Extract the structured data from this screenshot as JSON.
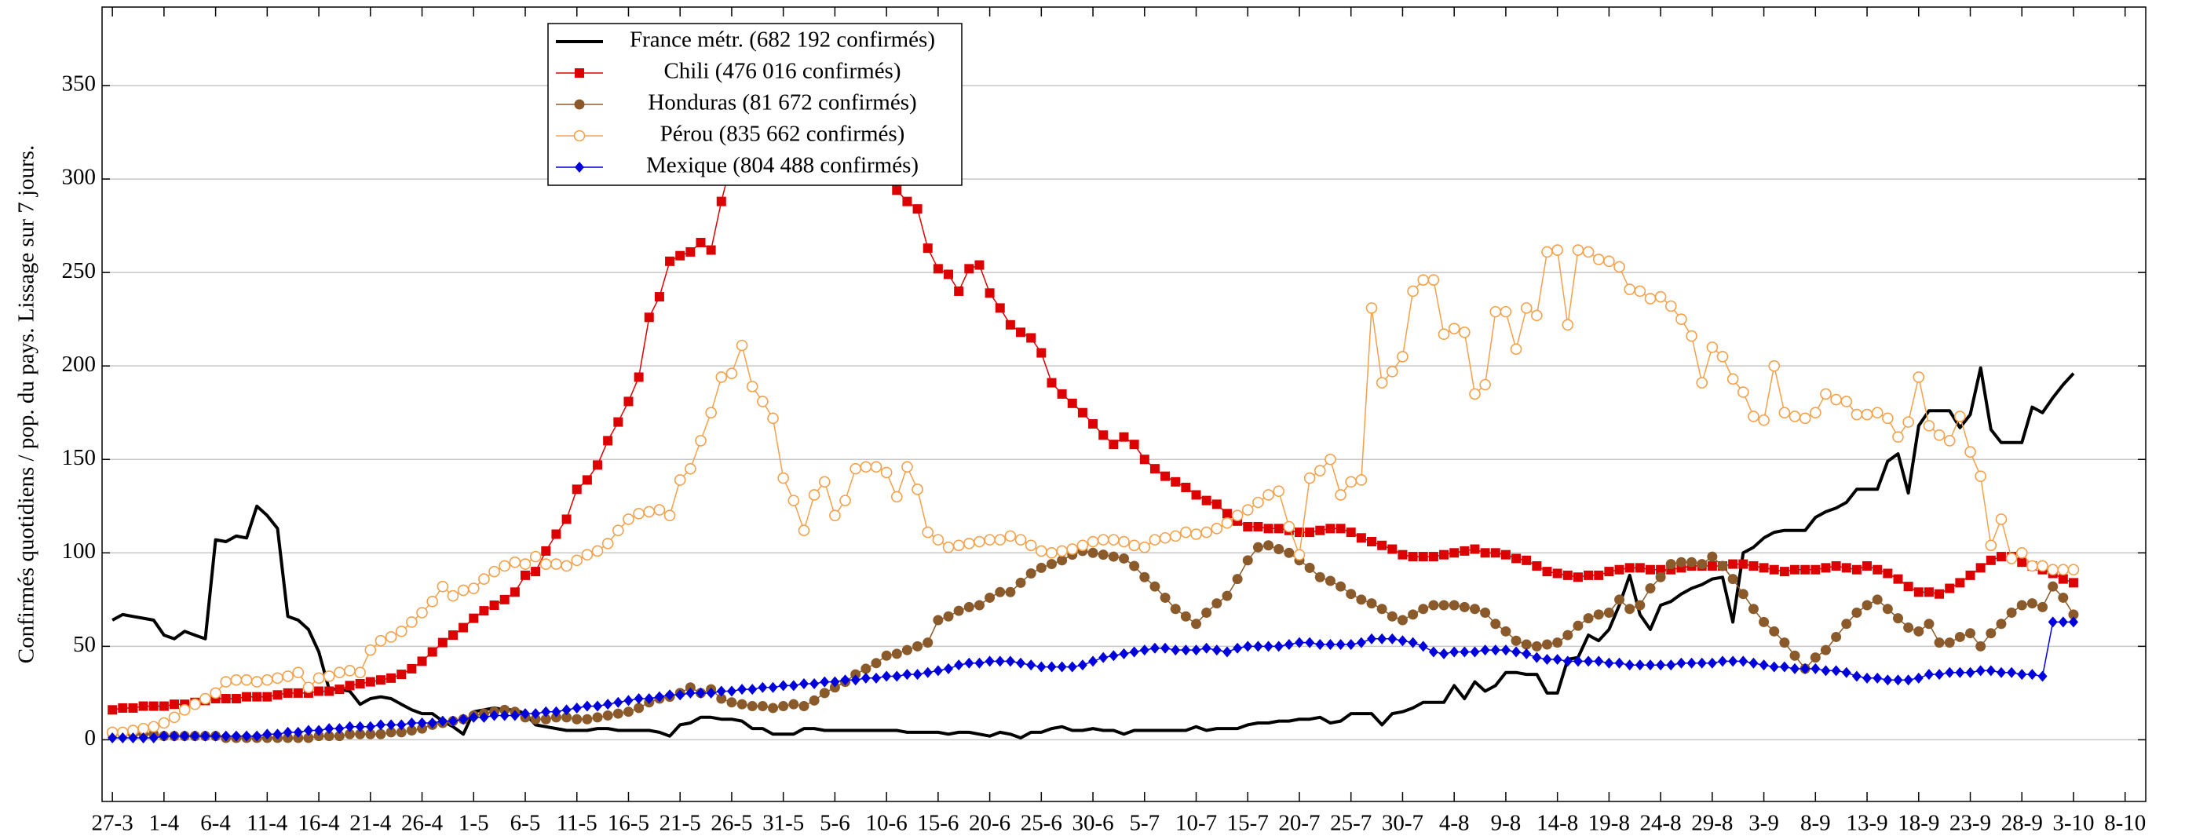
{
  "chart_data": {
    "type": "line",
    "y_label": "Confirmés quotidiens / pop. du pays. Lissage sur 7 jours.",
    "x": [
      0,
      1,
      2,
      3,
      4,
      5,
      6,
      7,
      8,
      9,
      10,
      11,
      12,
      13,
      14,
      15,
      16,
      17,
      18,
      19,
      20,
      21,
      22,
      23,
      24,
      25,
      26,
      27,
      28,
      29,
      30,
      31,
      32,
      33,
      34,
      35,
      36,
      37,
      38,
      39,
      40,
      41,
      42,
      43,
      44,
      45,
      46,
      47,
      48,
      49,
      50,
      51,
      52,
      53,
      54,
      55,
      56,
      57,
      58,
      59,
      60,
      61,
      62,
      63,
      64,
      65,
      66,
      67,
      68,
      69,
      70,
      71,
      72,
      73,
      74,
      75,
      76,
      77,
      78,
      79,
      80,
      81,
      82,
      83,
      84,
      85,
      86,
      87,
      88,
      89,
      90,
      91,
      92,
      93,
      94,
      95,
      96,
      97,
      98,
      99,
      100,
      101,
      102,
      103,
      104,
      105,
      106,
      107,
      108,
      109,
      110,
      111,
      112,
      113,
      114,
      115,
      116,
      117,
      118,
      119,
      120,
      121,
      122,
      123,
      124,
      125,
      126,
      127,
      128,
      129,
      130,
      131,
      132,
      133,
      134,
      135,
      136,
      137,
      138,
      139,
      140,
      141,
      142,
      143,
      144,
      145,
      146,
      147,
      148,
      149,
      150,
      151,
      152,
      153,
      154,
      155,
      156,
      157,
      158,
      159,
      160,
      161,
      162,
      163,
      164,
      165,
      166,
      167,
      168,
      169,
      170,
      171,
      172,
      173,
      174,
      175,
      176,
      177,
      178,
      179,
      180,
      181,
      182,
      183,
      184,
      185,
      186,
      187,
      188,
      189,
      190
    ],
    "xlim": [
      -1,
      197
    ],
    "xticks": [
      {
        "value": 0,
        "label": "27-3"
      },
      {
        "value": 5,
        "label": "1-4"
      },
      {
        "value": 10,
        "label": "6-4"
      },
      {
        "value": 15,
        "label": "11-4"
      },
      {
        "value": 20,
        "label": "16-4"
      },
      {
        "value": 25,
        "label": "21-4"
      },
      {
        "value": 30,
        "label": "26-4"
      },
      {
        "value": 35,
        "label": "1-5"
      },
      {
        "value": 40,
        "label": "6-5"
      },
      {
        "value": 45,
        "label": "11-5"
      },
      {
        "value": 50,
        "label": "16-5"
      },
      {
        "value": 55,
        "label": "21-5"
      },
      {
        "value": 60,
        "label": "26-5"
      },
      {
        "value": 65,
        "label": "31-5"
      },
      {
        "value": 70,
        "label": "5-6"
      },
      {
        "value": 75,
        "label": "10-6"
      },
      {
        "value": 80,
        "label": "15-6"
      },
      {
        "value": 85,
        "label": "20-6"
      },
      {
        "value": 90,
        "label": "25-6"
      },
      {
        "value": 95,
        "label": "30-6"
      },
      {
        "value": 100,
        "label": "5-7"
      },
      {
        "value": 105,
        "label": "10-7"
      },
      {
        "value": 110,
        "label": "15-7"
      },
      {
        "value": 115,
        "label": "20-7"
      },
      {
        "value": 120,
        "label": "25-7"
      },
      {
        "value": 125,
        "label": "30-7"
      },
      {
        "value": 130,
        "label": "4-8"
      },
      {
        "value": 135,
        "label": "9-8"
      },
      {
        "value": 140,
        "label": "14-8"
      },
      {
        "value": 145,
        "label": "19-8"
      },
      {
        "value": 150,
        "label": "24-8"
      },
      {
        "value": 155,
        "label": "29-8"
      },
      {
        "value": 160,
        "label": "3-9"
      },
      {
        "value": 165,
        "label": "8-9"
      },
      {
        "value": 170,
        "label": "13-9"
      },
      {
        "value": 175,
        "label": "18-9"
      },
      {
        "value": 180,
        "label": "23-9"
      },
      {
        "value": 185,
        "label": "28-9"
      },
      {
        "value": 190,
        "label": "3-10"
      },
      {
        "value": 195,
        "label": "8-10"
      }
    ],
    "ylim": [
      -33,
      392
    ],
    "yticks": [
      0,
      50,
      100,
      150,
      200,
      250,
      300,
      350
    ],
    "grid": true,
    "legend": "upper center",
    "series": [
      {
        "name": "France métr. (682 192 confirmés)",
        "color": "#000000",
        "marker": "none",
        "values": [
          64,
          67,
          66,
          65,
          64,
          56,
          54,
          58,
          56,
          54,
          107,
          106,
          109,
          108,
          125,
          120,
          113,
          66,
          64,
          59,
          47,
          27,
          27,
          26,
          19,
          22,
          23,
          22,
          19,
          16,
          14,
          14,
          10,
          7,
          3,
          15,
          16,
          17,
          16,
          16,
          14,
          8,
          7,
          6,
          5,
          5,
          5,
          6,
          6,
          5,
          5,
          5,
          5,
          4,
          2,
          8,
          9,
          12,
          12,
          11,
          11,
          10,
          6,
          6,
          3,
          3,
          3,
          6,
          6,
          5,
          5,
          5,
          5,
          5,
          5,
          5,
          5,
          4,
          4,
          4,
          4,
          3,
          4,
          4,
          3,
          2,
          4,
          3,
          1,
          4,
          4,
          6,
          7,
          5,
          5,
          6,
          5,
          5,
          3,
          5,
          5,
          5,
          5,
          5,
          5,
          7,
          5,
          6,
          6,
          6,
          8,
          9,
          9,
          10,
          10,
          11,
          11,
          12,
          9,
          10,
          14,
          14,
          14,
          8,
          14,
          15,
          17,
          20,
          20,
          20,
          29,
          22,
          31,
          26,
          29,
          36,
          36,
          35,
          35,
          25,
          25,
          43,
          44,
          56,
          53,
          59,
          72,
          88,
          67,
          59,
          72,
          74,
          78,
          81,
          83,
          86,
          87,
          63,
          100,
          103,
          108,
          111,
          112,
          112,
          112,
          119,
          122,
          124,
          127,
          134,
          134,
          134,
          149,
          153,
          132,
          168,
          176,
          176,
          176,
          167,
          174,
          199,
          166,
          159,
          159,
          159,
          178,
          175,
          183,
          190,
          196
        ]
      },
      {
        "name": "Chili (476 016 confirmés)",
        "color": "#dd0000",
        "marker": "square",
        "values": [
          16,
          17,
          17,
          18,
          18,
          18,
          19,
          19,
          20,
          21,
          22,
          22,
          22,
          23,
          23,
          23,
          24,
          25,
          25,
          25,
          26,
          26,
          27,
          29,
          30,
          31,
          32,
          33,
          35,
          38,
          42,
          47,
          52,
          56,
          60,
          65,
          69,
          72,
          75,
          79,
          88,
          90,
          101,
          110,
          118,
          134,
          139,
          147,
          160,
          170,
          181,
          194,
          226,
          237,
          256,
          259,
          261,
          266,
          262,
          288,
          310,
          325,
          335,
          345,
          350,
          352,
          350,
          348,
          345,
          340,
          335,
          330,
          325,
          315,
          305,
          300,
          294,
          288,
          284,
          263,
          252,
          249,
          240,
          252,
          254,
          239,
          231,
          222,
          218,
          215,
          207,
          191,
          185,
          180,
          175,
          169,
          163,
          158,
          162,
          158,
          150,
          145,
          141,
          138,
          135,
          131,
          128,
          126,
          121,
          117,
          114,
          114,
          113,
          113,
          112,
          111,
          111,
          112,
          113,
          113,
          111,
          108,
          106,
          104,
          102,
          99,
          98,
          98,
          98,
          99,
          100,
          101,
          102,
          100,
          100,
          99,
          97,
          96,
          93,
          90,
          89,
          88,
          87,
          88,
          88,
          90,
          91,
          92,
          92,
          91,
          91,
          91,
          92,
          93,
          93,
          93,
          93,
          94,
          94,
          93,
          92,
          91,
          90,
          91,
          91,
          91,
          92,
          93,
          92,
          91,
          93,
          91,
          89,
          86,
          82,
          79,
          79,
          78,
          81,
          84,
          88,
          92,
          96,
          98,
          98,
          95,
          93,
          91,
          89,
          86,
          84
        ]
      },
      {
        "name": "Honduras (81 672 confirmés)",
        "color": "#8b5a2b",
        "marker": "circle",
        "values": [
          3,
          3,
          3,
          3,
          3,
          2,
          2,
          2,
          2,
          2,
          2,
          1,
          1,
          1,
          1,
          1,
          1,
          1,
          1,
          1,
          2,
          2,
          2,
          3,
          3,
          3,
          3,
          4,
          4,
          5,
          6,
          8,
          9,
          10,
          11,
          13,
          14,
          15,
          16,
          15,
          12,
          11,
          11,
          12,
          12,
          11,
          11,
          12,
          13,
          14,
          15,
          17,
          20,
          22,
          23,
          25,
          28,
          25,
          27,
          22,
          20,
          19,
          18,
          18,
          17,
          18,
          19,
          18,
          21,
          25,
          28,
          31,
          35,
          38,
          41,
          45,
          46,
          48,
          50,
          52,
          64,
          66,
          69,
          71,
          72,
          76,
          79,
          79,
          84,
          89,
          92,
          94,
          96,
          99,
          101,
          100,
          99,
          98,
          97,
          93,
          87,
          82,
          76,
          70,
          66,
          62,
          68,
          73,
          77,
          86,
          96,
          103,
          104,
          102,
          100,
          96,
          92,
          87,
          85,
          82,
          78,
          75,
          73,
          70,
          66,
          64,
          67,
          70,
          72,
          72,
          72,
          71,
          70,
          68,
          62,
          58,
          53,
          51,
          50,
          51,
          52,
          56,
          61,
          65,
          67,
          68,
          75,
          70,
          72,
          81,
          87,
          94,
          95,
          95,
          94,
          98,
          93,
          86,
          78,
          70,
          63,
          58,
          52,
          45,
          38,
          44,
          48,
          55,
          62,
          68,
          72,
          75,
          70,
          65,
          60,
          58,
          62,
          52,
          52,
          55,
          57,
          50,
          57,
          62,
          68,
          72,
          73,
          71,
          82,
          76,
          67
        ]
      },
      {
        "name": "Pérou (835 662 confirmés)",
        "color": "#f5a04a",
        "marker": "circle-open",
        "values": [
          4,
          4,
          5,
          6,
          7,
          9,
          12,
          16,
          19,
          22,
          25,
          31,
          32,
          32,
          31,
          32,
          33,
          34,
          36,
          28,
          33,
          34,
          36,
          37,
          36,
          48,
          53,
          55,
          58,
          63,
          68,
          74,
          82,
          77,
          80,
          81,
          86,
          90,
          93,
          95,
          94,
          98,
          94,
          94,
          93,
          96,
          99,
          101,
          105,
          112,
          118,
          121,
          122,
          123,
          120,
          139,
          145,
          160,
          175,
          194,
          196,
          211,
          189,
          181,
          172,
          140,
          128,
          112,
          131,
          138,
          120,
          128,
          145,
          146,
          146,
          143,
          130,
          146,
          134,
          111,
          107,
          103,
          104,
          105,
          106,
          107,
          107,
          109,
          107,
          104,
          101,
          100,
          101,
          102,
          104,
          106,
          107,
          107,
          106,
          104,
          103,
          107,
          108,
          109,
          111,
          110,
          111,
          113,
          116,
          120,
          123,
          127,
          131,
          133,
          114,
          99,
          140,
          144,
          150,
          131,
          138,
          139,
          231,
          191,
          197,
          205,
          240,
          246,
          246,
          217,
          220,
          218,
          185,
          190,
          229,
          229,
          209,
          231,
          227,
          261,
          262,
          222,
          262,
          261,
          257,
          256,
          253,
          241,
          240,
          236,
          237,
          232,
          225,
          216,
          191,
          210,
          205,
          193,
          186,
          173,
          171,
          200,
          175,
          173,
          172,
          175,
          185,
          182,
          181,
          174,
          174,
          175,
          172,
          162,
          170,
          194,
          168,
          163,
          160,
          173,
          154,
          141,
          104,
          118,
          97,
          100,
          93,
          93,
          91,
          91,
          91
        ]
      },
      {
        "name": "Mexique (804 488 confirmés)",
        "color": "#0000dd",
        "marker": "diamond",
        "values": [
          1,
          1,
          1,
          1,
          1,
          2,
          2,
          2,
          2,
          2,
          2,
          2,
          2,
          2,
          2,
          3,
          3,
          4,
          4,
          5,
          5,
          6,
          6,
          7,
          7,
          7,
          8,
          8,
          8,
          9,
          9,
          9,
          10,
          10,
          11,
          12,
          12,
          13,
          13,
          13,
          14,
          14,
          15,
          15,
          16,
          17,
          18,
          18,
          19,
          20,
          21,
          22,
          22,
          23,
          24,
          24,
          25,
          25,
          25,
          26,
          26,
          27,
          27,
          28,
          28,
          29,
          29,
          30,
          30,
          31,
          31,
          32,
          32,
          33,
          33,
          34,
          34,
          35,
          35,
          36,
          37,
          38,
          40,
          41,
          41,
          42,
          42,
          42,
          41,
          40,
          39,
          39,
          39,
          39,
          40,
          42,
          44,
          45,
          46,
          47,
          48,
          49,
          49,
          48,
          48,
          48,
          49,
          48,
          47,
          49,
          50,
          50,
          50,
          50,
          51,
          52,
          52,
          51,
          51,
          51,
          51,
          52,
          54,
          54,
          54,
          53,
          52,
          50,
          47,
          46,
          47,
          47,
          47,
          48,
          48,
          48,
          47,
          46,
          44,
          43,
          43,
          42,
          42,
          42,
          42,
          41,
          41,
          40,
          40,
          40,
          40,
          40,
          41,
          41,
          41,
          41,
          42,
          42,
          42,
          41,
          40,
          39,
          39,
          38,
          38,
          38,
          37,
          37,
          36,
          34,
          33,
          33,
          32,
          32,
          32,
          33,
          35,
          35,
          36,
          36,
          36,
          37,
          37,
          36,
          36,
          35,
          35,
          34,
          63,
          63,
          63
        ]
      }
    ]
  }
}
